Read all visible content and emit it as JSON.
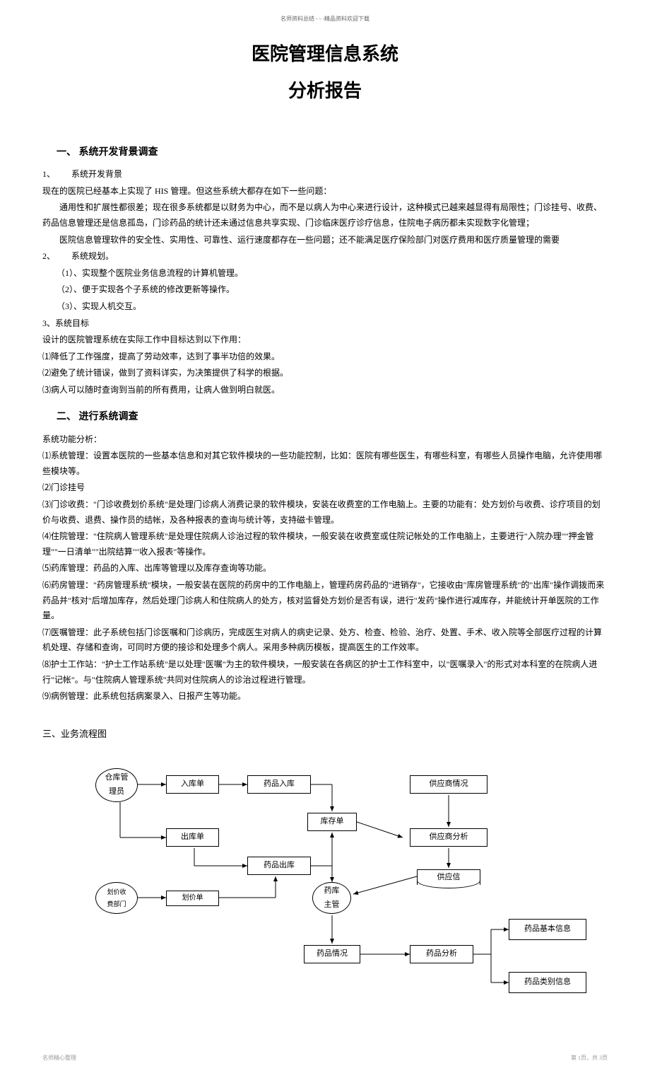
{
  "top_header": "名师资料总结 - - -精品资料欢迎下载",
  "title_main": "医院管理信息系统",
  "title_sub": "分析报告",
  "section1": {
    "heading": "一、   系统开发背景调查",
    "item1_num": "1、",
    "item1_label": "系统开发背景",
    "p1": "现在的医院已经基本上实现了  HIS  管理。但这些系统大都存在如下一些问题：",
    "p2": "通用性和扩展性都很差；现在很多系统都是以财务为中心，而不是以病人为中心来进行设计，这种模式已越来越显得有局限性；门诊挂号、收费、药品信息管理还是信息孤岛，门诊药品的统计还未通过信息共享实现、门诊临床医疗诊疗信息，住院电子病历都未实现数字化管理；",
    "p3": "医院信息管理软件的安全性、实用性、可靠性、运行速度都存在一些问题；还不能满足医疗保险部门对医疗费用和医疗质量管理的需要",
    "item2_num": "2、",
    "item2_label": "系统规划。",
    "s2_1": "（1）、实现整个医院业务信息流程的计算机管理。",
    "s2_2": "（2）、便于实现各个子系统的修改更新等操作。",
    "s2_3": "（3）、实现人机交互。",
    "item3_num": "3、系统目标",
    "s3_intro": "设计的医院管理系统在实际工作中目标达到以下作用：",
    "s3_1": "⑴降低了工作强度，提高了劳动效率，达到了事半功倍的效果。",
    "s3_2": "⑵避免了统计错误，做到了资料详实，为决策提供了科学的根据。",
    "s3_3": "⑶病人可以随时查询到当前的所有费用，让病人做到明白就医。"
  },
  "section2": {
    "heading": "二、   进行系统调查",
    "subheading": "系统功能分析：",
    "f1": "⑴系统管理：设置本医院的一些基本信息和对其它软件模块的一些功能控制，比如：医院有哪些医生，有哪些科室，有哪些人员操作电脑，允许使用哪些模块等。",
    "f2": "⑵门诊挂号",
    "f3": "⑶门诊收费：\"门诊收费划价系统\"是处理门诊病人消费记录的软件模块，安装在收费室的工作电脑上。主要的功能有：处方划价与收费、诊疗项目的划价与收费、退费、操作员的结帐，及各种报表的查询与统计等，支持磁卡管理。",
    "f4": "⑷住院管理：\"住院病人管理系统\"是处理住院病人诊治过程的软件模块，一般安装在收费室或住院记帐处的工作电脑上，主要进行\"入院办理\"\"押金管理\"\"一日清单\"\"出院结算\"\"收入报表\"等操作。",
    "f5": "⑸药库管理：药品的入库、出库等管理以及库存查询等功能。",
    "f6": "⑹药房管理：\"药房管理系统\"模块，一般安装在医院的药房中的工作电脑上，管理药房药品的\"进销存\"，它接收由\"库房管理系统\"的\"出库\"操作调拨而来药品并\"核对\"后增加库存，然后处理门诊病人和住院病人的处方，核对监督处方划价是否有误，进行\"发药\"操作进行减库存，并能统计开单医院的工作量。",
    "f7": "⑺医嘱管理：此子系统包括门诊医嘱和门诊病历，完成医生对病人的病史记录、处方、检查、检验、治疗、处置、手术、收入院等全部医疗过程的计算机处理、存储和查询，可同时方便的接诊和处理多个病人。采用多种病历模板，提高医生的工作效率。",
    "f8": "⑻护士工作站：\"护士工作站系统\"是以处理\"医嘱\"为主的软件模块，一般安装在各病区的护士工作科室中，以\"医嘱录入\"的形式对本科室的在院病人进行\"记帐\"。与\"住院病人管理系统\"共同对住院病人的诊治过程进行管理。",
    "f9": "⑼病例管理：此系统包括病案录入、日报产生等功能。"
  },
  "section3": {
    "heading": "三、业务流程图"
  },
  "flowchart": {
    "nodes": {
      "warehouse_admin": "仓库管\n理员",
      "inbound_slip": "入库单",
      "drug_inbound": "药品入库",
      "outbound_slip": "出库单",
      "drug_outbound": "药品出库",
      "stock_slip": "库存单",
      "price_dept": "划价收\n费部门",
      "price_slip": "划价单",
      "pharmacy_head": "药库\n主管",
      "supplier_info": "供应商情况",
      "supplier_analysis": "供应商分析",
      "supply_letter": "供应信",
      "drug_status": "药品情况",
      "drug_analysis": "药品分析",
      "drug_basic": "药品基本信息",
      "drug_category": "药品类别信息"
    }
  },
  "footer": {
    "left": "名师精心整理",
    "right": "第 1页，共 3页"
  }
}
